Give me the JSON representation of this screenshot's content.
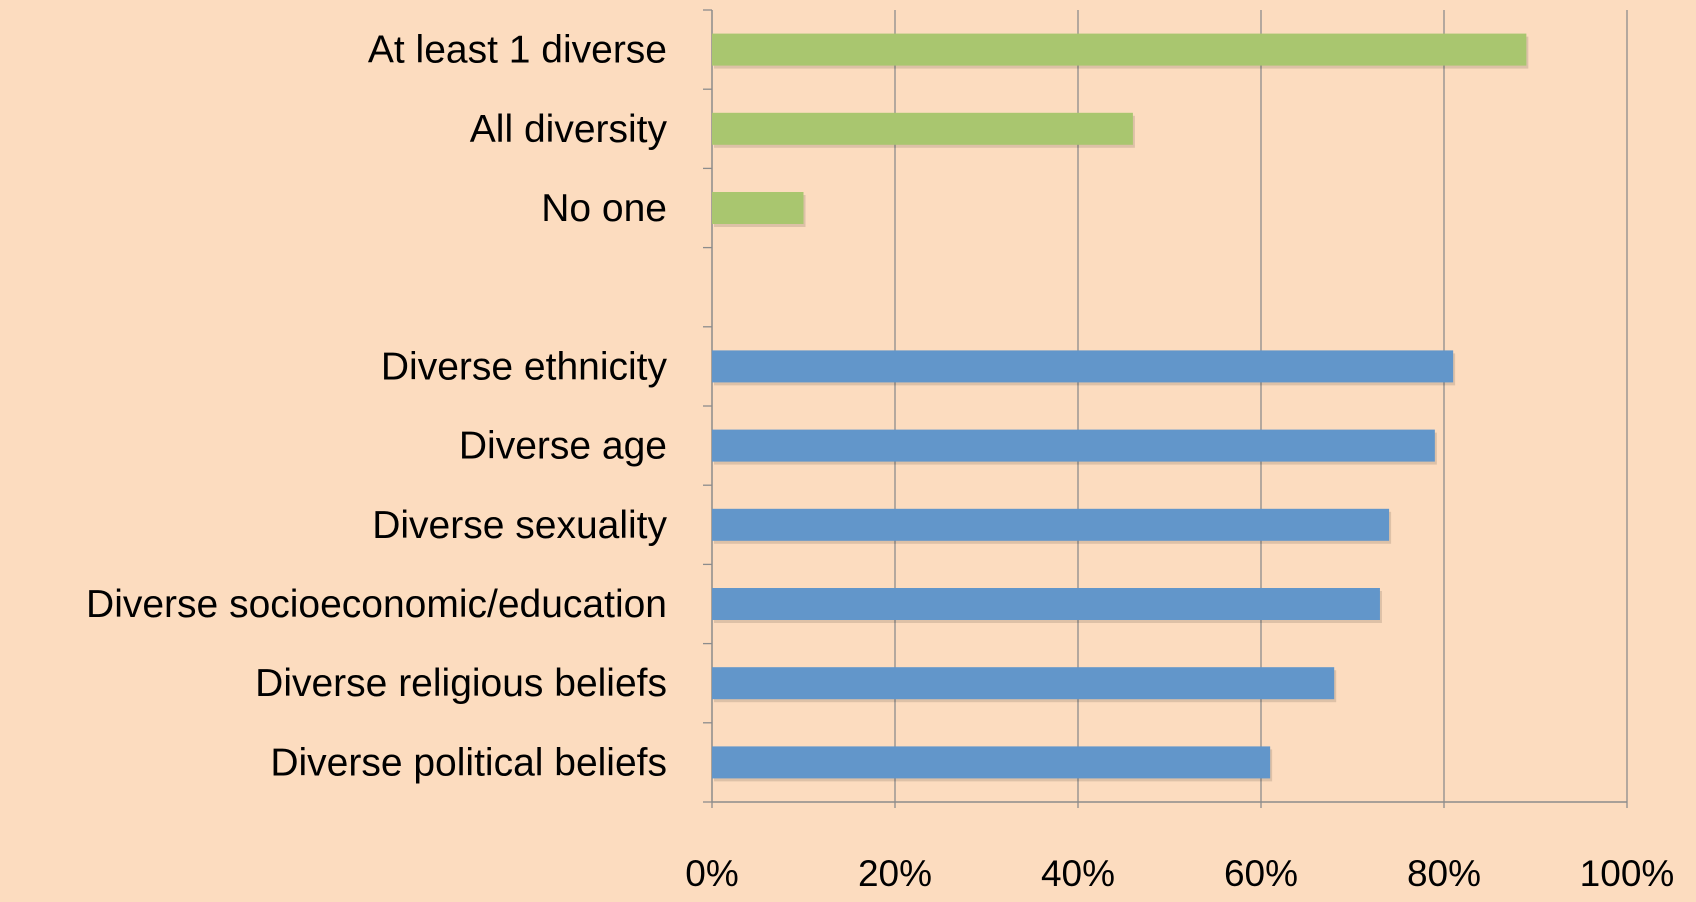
{
  "chart_data": {
    "type": "bar",
    "orientation": "horizontal",
    "title": "",
    "xlabel": "",
    "ylabel": "",
    "xlim": [
      0,
      100
    ],
    "x_ticks": [
      "0%",
      "20%",
      "40%",
      "60%",
      "80%",
      "100%"
    ],
    "grid": "vertical",
    "legend": "none",
    "background": "#FCDCBF",
    "categories": [
      "At least 1 diverse",
      "All diversity",
      "No one",
      "",
      "Diverse ethnicity",
      "Diverse age",
      "Diverse sexuality",
      "Diverse socioeconomic/education",
      "Diverse religious beliefs",
      "Diverse political beliefs"
    ],
    "values": [
      89,
      46,
      10,
      null,
      81,
      79,
      74,
      73,
      68,
      61
    ],
    "bar_colors": [
      "#A9C66F",
      "#A9C66F",
      "#A9C66F",
      null,
      "#6296CA",
      "#6296CA",
      "#6296CA",
      "#6296CA",
      "#6296CA",
      "#6296CA"
    ]
  }
}
